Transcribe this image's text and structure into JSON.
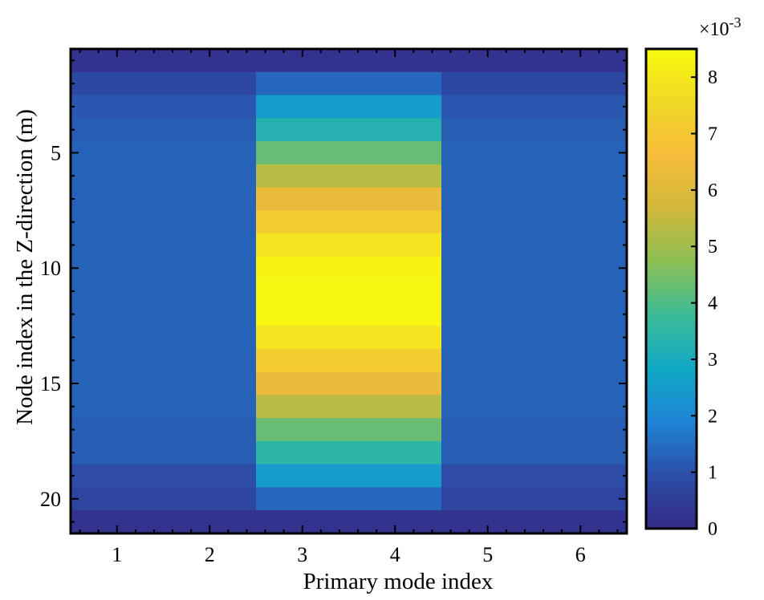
{
  "chart_data": {
    "type": "heatmap",
    "title": "",
    "xlabel": "Primary mode index",
    "ylabel": "Node index in the Z-direction (m)",
    "x": [
      1,
      2,
      3,
      4,
      5,
      6
    ],
    "y": [
      1,
      2,
      3,
      4,
      5,
      6,
      7,
      8,
      9,
      10,
      11,
      12,
      13,
      14,
      15,
      16,
      17,
      18,
      19,
      20,
      21
    ],
    "xlim": [
      0.5,
      6.5
    ],
    "ylim": [
      21.5,
      0.5
    ],
    "xticks": [
      "1",
      "2",
      "3",
      "4",
      "5",
      "6"
    ],
    "yticks": [
      5,
      10,
      15,
      20
    ],
    "ytick_labels": [
      "5",
      "10",
      "15",
      "20"
    ],
    "values_unit_multiplier": "×10",
    "values_unit_exponent": "-3",
    "colorbar": {
      "range": [
        0,
        8.5
      ],
      "ticks": [
        0,
        1,
        2,
        3,
        4,
        5,
        6,
        7,
        8
      ],
      "tick_labels": [
        "0",
        "1",
        "2",
        "3",
        "4",
        "5",
        "6",
        "7",
        "8"
      ],
      "colormap": [
        "#352a87",
        "#2c4ea8",
        "#1f84d6",
        "#11a8c5",
        "#3bbb97",
        "#8cbf54",
        "#d0b83a",
        "#f7bc3a",
        "#f0d828",
        "#f9fb0e"
      ]
    },
    "values": [
      [
        0.2,
        0.2,
        0.2,
        0.2,
        0.2,
        0.2
      ],
      [
        0.8,
        0.8,
        1.4,
        1.4,
        0.8,
        0.8
      ],
      [
        1.1,
        1.1,
        2.5,
        2.5,
        1.1,
        1.1
      ],
      [
        1.2,
        1.2,
        3.3,
        3.3,
        1.2,
        1.2
      ],
      [
        1.3,
        1.3,
        4.3,
        4.3,
        1.3,
        1.3
      ],
      [
        1.3,
        1.3,
        5.3,
        5.3,
        1.3,
        1.3
      ],
      [
        1.3,
        1.3,
        6.3,
        6.3,
        1.3,
        1.3
      ],
      [
        1.3,
        1.3,
        7.2,
        7.2,
        1.3,
        1.3
      ],
      [
        1.3,
        1.3,
        7.9,
        7.9,
        1.3,
        1.3
      ],
      [
        1.3,
        1.3,
        8.3,
        8.3,
        1.3,
        1.3
      ],
      [
        1.3,
        1.3,
        8.4,
        8.4,
        1.3,
        1.3
      ],
      [
        1.3,
        1.3,
        8.4,
        8.4,
        1.3,
        1.3
      ],
      [
        1.3,
        1.3,
        7.9,
        7.9,
        1.3,
        1.3
      ],
      [
        1.3,
        1.3,
        7.2,
        7.2,
        1.3,
        1.3
      ],
      [
        1.3,
        1.3,
        6.3,
        6.3,
        1.3,
        1.3
      ],
      [
        1.3,
        1.3,
        5.3,
        5.3,
        1.3,
        1.3
      ],
      [
        1.2,
        1.2,
        4.3,
        4.3,
        1.2,
        1.2
      ],
      [
        1.2,
        1.2,
        3.5,
        3.5,
        1.2,
        1.2
      ],
      [
        0.9,
        0.9,
        2.5,
        2.5,
        0.9,
        0.9
      ],
      [
        0.7,
        0.7,
        1.4,
        1.4,
        0.7,
        0.7
      ],
      [
        0.2,
        0.2,
        0.2,
        0.2,
        0.2,
        0.2
      ]
    ]
  }
}
